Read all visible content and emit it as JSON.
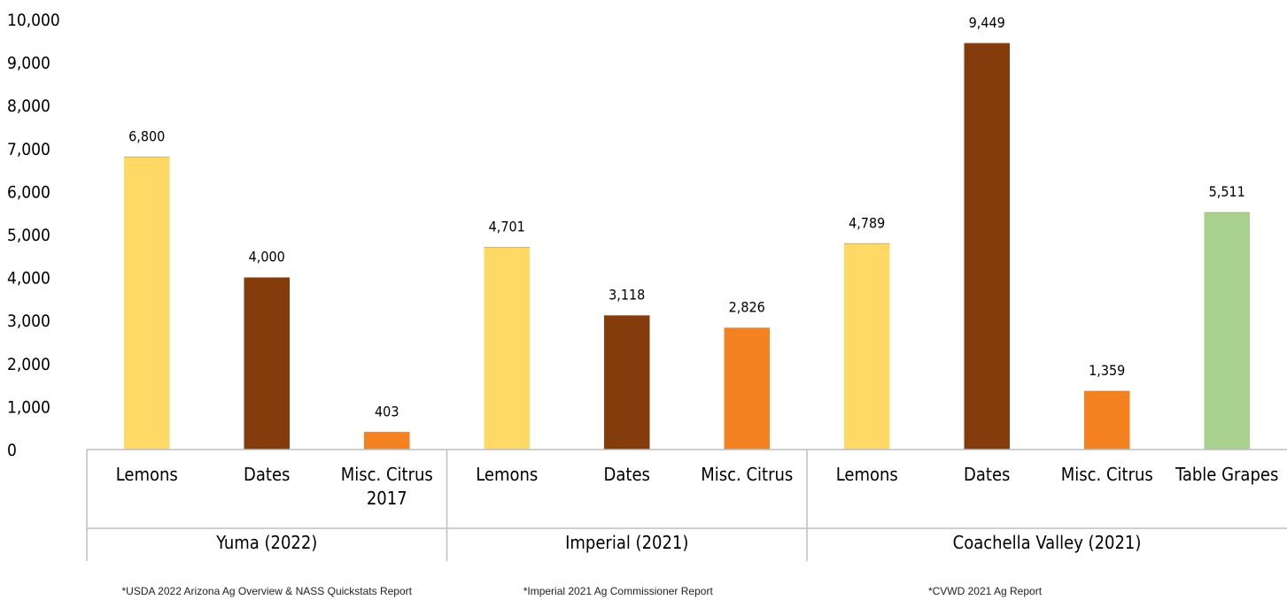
{
  "chart_data": {
    "type": "bar",
    "ylim": [
      0,
      10000
    ],
    "yticks": [
      "0",
      "1,000",
      "2,000",
      "3,000",
      "4,000",
      "5,000",
      "6,000",
      "7,000",
      "8,000",
      "9,000",
      "10,000"
    ],
    "grid": false,
    "groups": [
      {
        "name": "Yuma (2022)",
        "note": "*USDA 2022 Arizona Ag Overview & NASS Quickstats Report",
        "bars": [
          {
            "category": [
              "Lemons"
            ],
            "value": 6800,
            "label": "6,800",
            "color": "#FFD966"
          },
          {
            "category": [
              "Dates"
            ],
            "value": 4000,
            "label": "4,000",
            "color": "#843C0C"
          },
          {
            "category": [
              "Misc. Citrus",
              "2017"
            ],
            "value": 403,
            "label": "403",
            "color": "#F58220"
          }
        ]
      },
      {
        "name": "Imperial (2021)",
        "note": "*Imperial 2021 Ag Commissioner Report",
        "bars": [
          {
            "category": [
              "Lemons"
            ],
            "value": 4701,
            "label": "4,701",
            "color": "#FFD966"
          },
          {
            "category": [
              "Dates"
            ],
            "value": 3118,
            "label": "3,118",
            "color": "#843C0C"
          },
          {
            "category": [
              "Misc. Citrus"
            ],
            "value": 2826,
            "label": "2,826",
            "color": "#F58220"
          }
        ]
      },
      {
        "name": "Coachella Valley (2021)",
        "note": "*CVWD 2021 Ag Report",
        "bars": [
          {
            "category": [
              "Lemons"
            ],
            "value": 4789,
            "label": "4,789",
            "color": "#FFD966"
          },
          {
            "category": [
              "Dates"
            ],
            "value": 9449,
            "label": "9,449",
            "color": "#843C0C"
          },
          {
            "category": [
              "Misc. Citrus"
            ],
            "value": 1359,
            "label": "1,359",
            "color": "#F58220"
          },
          {
            "category": [
              "Table Grapes"
            ],
            "value": 5511,
            "label": "5,511",
            "color": "#A9D18E"
          }
        ]
      }
    ]
  }
}
